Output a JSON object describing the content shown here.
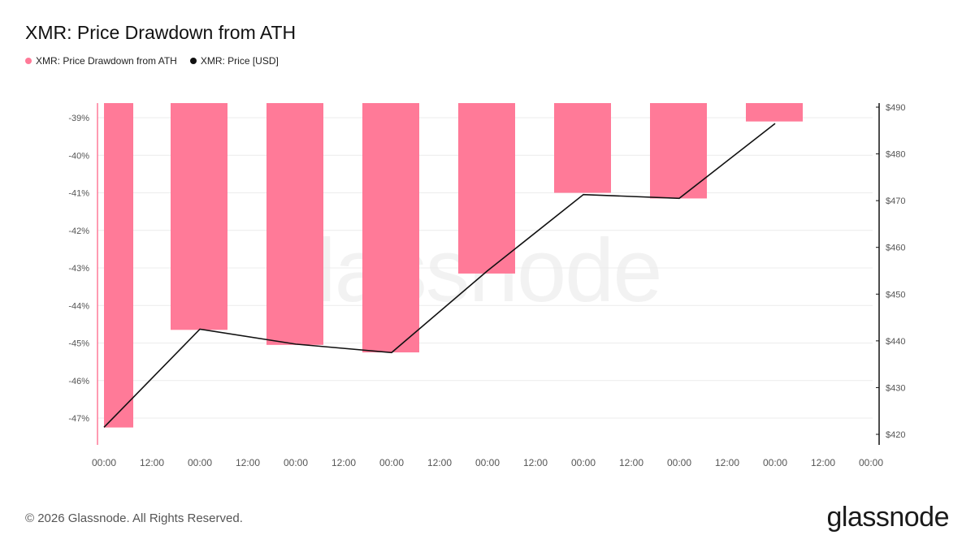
{
  "title": "XMR: Price Drawdown from ATH",
  "legend": [
    {
      "label": "XMR: Price Drawdown from ATH",
      "color": "#ff7a98"
    },
    {
      "label": "XMR: Price [USD]",
      "color": "#111111"
    }
  ],
  "footer": "© 2026 Glassnode. All Rights Reserved.",
  "brand": "glassnode",
  "watermark": "glassnode",
  "chart_data": {
    "type": "bar",
    "x_ticks": [
      "00:00",
      "12:00",
      "00:00",
      "12:00",
      "00:00",
      "12:00",
      "00:00",
      "12:00",
      "00:00",
      "12:00",
      "00:00",
      "12:00",
      "00:00",
      "12:00",
      "00:00",
      "12:00",
      "00:00"
    ],
    "series": [
      {
        "name": "XMR: Price Drawdown from ATH",
        "type": "bar",
        "color": "#ff7a98",
        "values": [
          -47.25,
          -44.65,
          -45.05,
          -45.25,
          -43.15,
          -41.0,
          -41.15,
          -39.1
        ]
      },
      {
        "name": "XMR: Price [USD]",
        "type": "line",
        "color": "#111111",
        "values": [
          421.5,
          442.5,
          439.3,
          437.5,
          455.0,
          471.3,
          470.5,
          486.5
        ]
      }
    ],
    "y_left": {
      "ticks": [
        "-39%",
        "-40%",
        "-41%",
        "-42%",
        "-43%",
        "-44%",
        "-45%",
        "-46%",
        "-47%"
      ],
      "range": [
        -47.6,
        -38.6
      ]
    },
    "y_right": {
      "ticks": [
        "$490",
        "$480",
        "$470",
        "$460",
        "$450",
        "$440",
        "$430",
        "$420"
      ],
      "range": [
        418.5,
        491
      ]
    },
    "grid": true
  }
}
